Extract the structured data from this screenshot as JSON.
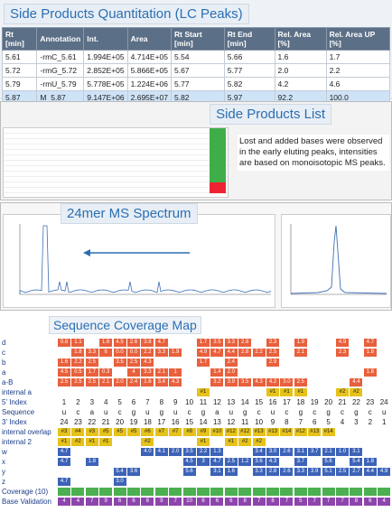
{
  "quant": {
    "title": "Side Products Quantitation (LC Peaks)",
    "columns": [
      "Rt [min]",
      "Annotation",
      "Int.",
      "Area",
      "Rt Start [min]",
      "Rt End [min]",
      "Rel. Area [%]",
      "Rel. Area UP [%]"
    ],
    "rows": [
      [
        "5.61",
        "-rmC_5.61",
        "1.994E+05",
        "4.714E+05",
        "5.54",
        "5.66",
        "1.6",
        "1.7"
      ],
      [
        "5.72",
        "-rmG_5.72",
        "2.852E+05",
        "5.866E+05",
        "5.67",
        "5.77",
        "2.0",
        "2.2"
      ],
      [
        "5.79",
        "-rmU_5.79",
        "5.778E+05",
        "1.224E+06",
        "5.77",
        "5.82",
        "4.2",
        "4.6"
      ],
      [
        "5.87",
        "M_5.87",
        "9.147E+06",
        "2.695E+07",
        "5.82",
        "5.97",
        "92.2",
        "100.0"
      ]
    ]
  },
  "list": {
    "title": "Side Products List",
    "note": "Lost and added bases were observed in the early eluting peaks, intensities are based on monoisotopic MS peaks."
  },
  "spectrum": {
    "title": "24mer MS Spectrum"
  },
  "coverage": {
    "title": "Sequence Coverage Map",
    "labels": [
      "d",
      "c",
      "b",
      "a",
      "a-B",
      "internal a",
      "5' Index",
      "Sequence",
      "3' Index",
      "internal overlap",
      "internal 2",
      "w",
      "x",
      "y",
      "z",
      "Coverage (10)",
      "Base Validation"
    ],
    "index5": [
      "1",
      "2",
      "3",
      "4",
      "5",
      "6",
      "7",
      "8",
      "9",
      "10",
      "11",
      "12",
      "13",
      "14",
      "15",
      "16",
      "17",
      "18",
      "19",
      "20",
      "21",
      "22",
      "23",
      "24"
    ],
    "sequence": [
      "u",
      "c",
      "a",
      "u",
      "c",
      "g",
      "u",
      "g",
      "u",
      "c",
      "g",
      "a",
      "u",
      "g",
      "c",
      "u",
      "c",
      "g",
      "c",
      "g",
      "c",
      "g",
      "c",
      "u"
    ],
    "index3": [
      "24",
      "23",
      "22",
      "21",
      "20",
      "19",
      "18",
      "17",
      "16",
      "15",
      "14",
      "13",
      "12",
      "11",
      "10",
      "9",
      "8",
      "7",
      "6",
      "5",
      "4",
      "3",
      "2",
      "1"
    ],
    "rows": {
      "d": [
        "0.8",
        "1.1",
        "",
        "1.6",
        "4.5",
        "2.6",
        "3.8",
        "4.7",
        "",
        "",
        "1.7",
        "3.5",
        "3.3",
        "2.8",
        "",
        "2.3",
        "",
        "1.9",
        "",
        "",
        "4.9",
        "",
        "4.7",
        ""
      ],
      "c": [
        "",
        "1.8",
        "3.3",
        "6",
        "0.0",
        "0.0",
        "2.2",
        "3.3",
        "1.9",
        "",
        "4.9",
        "4.7",
        "4.4",
        "2.8",
        "2.2",
        "2.5",
        "",
        "2.1",
        "",
        "",
        "2.3",
        "",
        "1.8",
        ""
      ],
      "b": [
        "1.6",
        "2.2",
        "2.5",
        "",
        "3.5",
        "2.5",
        "4.3",
        "",
        "",
        "",
        "1.7",
        "",
        "2.4",
        "",
        "",
        "2.9",
        "",
        "",
        "",
        "",
        "",
        "",
        "",
        ""
      ],
      "a": [
        "4.5",
        "0.5",
        "1.7",
        "0.3",
        "",
        "4",
        "3.3",
        "2.1",
        "1",
        "",
        "",
        "1.4",
        "2.0",
        "",
        "",
        "",
        "",
        "",
        "",
        "",
        "",
        "",
        "1.8",
        ""
      ],
      "a-B": [
        "2.5",
        "2.5",
        "2.5",
        "2.1",
        "2.0",
        "2.4",
        "1.6",
        "3.4",
        "4.3",
        "",
        "",
        "3.2",
        "3.9",
        "3.5",
        "4.3",
        "4.2",
        "3.0",
        "2.5",
        "",
        "",
        "",
        "4.4",
        "",
        ""
      ],
      "internal a": [
        "",
        "",
        "",
        "",
        "",
        "",
        "",
        "",
        "",
        "",
        "#1",
        "",
        "",
        "",
        "",
        "#1",
        "#1",
        "#1",
        "",
        "",
        "#2",
        "#2",
        "",
        ""
      ],
      "internal overlap": [
        "#3",
        "#4",
        "#3",
        "#5",
        "#5",
        "#5",
        "#6",
        "#7",
        "#7",
        "#8",
        "#9",
        "#10",
        "#12",
        "#12",
        "#13",
        "#13",
        "#14",
        "#12",
        "#13",
        "#14",
        "",
        "",
        "",
        ""
      ],
      "internal 2": [
        "#1",
        "#2",
        "#1",
        "#1",
        "",
        "",
        "#2",
        "",
        "",
        "",
        "#1",
        "",
        "#1",
        "#2",
        "#2",
        "",
        "",
        "",
        "",
        "",
        "",
        "",
        "",
        ""
      ],
      "w": [
        "4.7",
        "",
        "",
        "",
        "",
        "",
        "4.0",
        "4.1",
        "2.0",
        "3.5",
        "2.2",
        "1.3",
        "",
        "",
        "3.4",
        "3.0",
        "2.6",
        "3.1",
        "3.7",
        "2.1",
        "1.0",
        "3.1",
        "",
        ""
      ],
      "x": [
        "4.7",
        "",
        "1.8",
        "",
        "",
        "",
        "",
        "",
        "",
        "4.5",
        "3",
        "4.7",
        "2.5",
        "1.2",
        "3.6",
        "4.3",
        "",
        "3.7",
        "",
        "5.6",
        "",
        "5.4",
        "1.8",
        ""
      ],
      "y": [
        "",
        "",
        "",
        "",
        "5.4",
        "3.6",
        "",
        "",
        "",
        "5.6",
        "",
        "3.1",
        "1.6",
        "",
        "3.3",
        "2.8",
        "2.6",
        "3.3",
        "3.9",
        "5.1",
        "2.5",
        "2.7",
        "4.4",
        "4.9"
      ],
      "z": [
        "4.7",
        "",
        "",
        "",
        "3.0",
        "",
        "",
        "",
        "",
        "",
        "",
        "",
        "",
        "",
        "",
        "",
        "",
        "",
        "",
        "",
        "",
        "",
        "",
        ""
      ],
      "Coverage (10)": [
        "",
        "",
        "",
        "",
        "",
        "",
        "",
        "",
        "",
        "",
        "",
        "",
        "",
        "",
        "",
        "",
        "",
        "",
        "",
        "",
        "",
        "",
        "",
        ""
      ],
      "Base Validation": [
        "4",
        "4",
        "7",
        "9",
        "6",
        "6",
        "6",
        "9",
        "7",
        "10",
        "6",
        "6",
        "6",
        "8",
        "7",
        "8",
        "7",
        "5",
        "7",
        "7",
        "7",
        "8",
        "6",
        "4"
      ]
    }
  }
}
